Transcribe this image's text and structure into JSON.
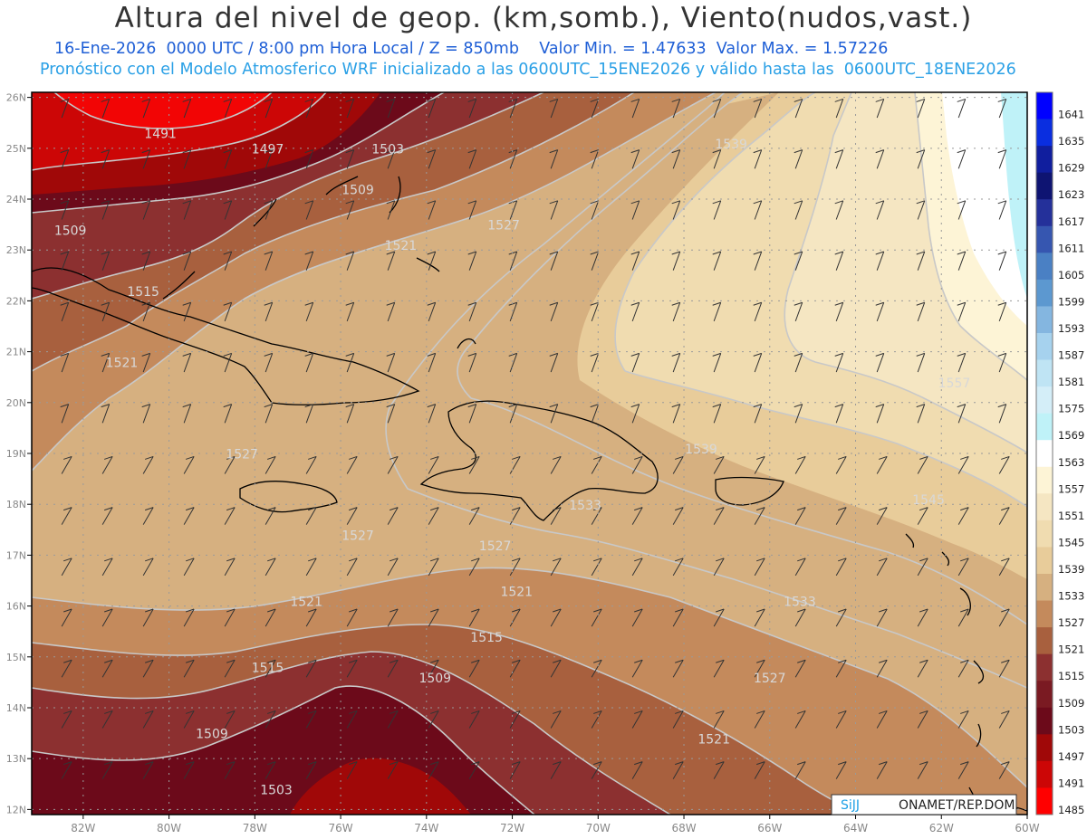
{
  "header": {
    "title": "Altura del nivel de geop. (km,somb.), Viento(nudos,vast.)",
    "date": "16-Ene-2026",
    "time": "0000 UTC / 8:00 pm Hora Local / Z = 850mb",
    "vmin": "Valor Min. = 1.47633",
    "vmax": "Valor Max. = 1.57226",
    "model_line": "Pronóstico con el Modelo Atmosferico WRF inicializado a las 0600UTC_15ENE2026 y válido hasta las  0600UTC_18ENE2026"
  },
  "axes": {
    "lon_labels": [
      "82W",
      "80W",
      "78W",
      "76W",
      "74W",
      "72W",
      "70W",
      "68W",
      "66W",
      "64W",
      "62W",
      "60W"
    ],
    "lon_values": [
      -82,
      -80,
      -78,
      -76,
      -74,
      -72,
      -70,
      -68,
      -66,
      -64,
      -62,
      -60
    ],
    "lat_labels": [
      "26N",
      "25N",
      "24N",
      "23N",
      "22N",
      "21N",
      "20N",
      "19N",
      "18N",
      "17N",
      "16N",
      "15N",
      "14N",
      "13N",
      "12N"
    ],
    "lat_values": [
      26,
      25,
      24,
      23,
      22,
      21,
      20,
      19,
      18,
      17,
      16,
      15,
      14,
      13,
      12
    ],
    "lon_range": [
      -83.2,
      -60
    ],
    "lat_range": [
      11.9,
      26.1
    ]
  },
  "colorbar": {
    "labels": [
      "1641",
      "1635",
      "1629",
      "1623",
      "1617",
      "1611",
      "1605",
      "1599",
      "1593",
      "1587",
      "1581",
      "1575",
      "1569",
      "1563",
      "1557",
      "1551",
      "1545",
      "1539",
      "1533",
      "1527",
      "1521",
      "1515",
      "1509",
      "1503",
      "1497",
      "1491",
      "1485"
    ],
    "colors": [
      "#0000ff",
      "#0a2ee0",
      "#101e9e",
      "#0e1472",
      "#24309a",
      "#3656b0",
      "#4a80c4",
      "#5c98d0",
      "#84b6e0",
      "#a6d2ee",
      "#bfe4f4",
      "#d4eef8",
      "#bff2f8",
      "#ffffff",
      "#fdf4d6",
      "#f5e6c2",
      "#f0dcb0",
      "#e8cc9a",
      "#d6b080",
      "#c48a5c",
      "#a8603e",
      "#8c3030",
      "#7a1a22",
      "#6c0a1a",
      "#a00808",
      "#cc0606",
      "#ff0000"
    ]
  },
  "contour_labels": [
    {
      "text": "1491",
      "lon": -80.2,
      "lat": 25.2
    },
    {
      "text": "1497",
      "lon": -77.7,
      "lat": 24.9
    },
    {
      "text": "1503",
      "lon": -74.9,
      "lat": 24.9
    },
    {
      "text": "1509",
      "lon": -75.6,
      "lat": 24.1
    },
    {
      "text": "1509",
      "lon": -82.3,
      "lat": 23.3
    },
    {
      "text": "1521",
      "lon": -74.6,
      "lat": 23.0
    },
    {
      "text": "1527",
      "lon": -72.2,
      "lat": 23.4
    },
    {
      "text": "1539",
      "lon": -66.9,
      "lat": 25.0
    },
    {
      "text": "1515",
      "lon": -80.6,
      "lat": 22.1
    },
    {
      "text": "1521",
      "lon": -81.1,
      "lat": 20.7
    },
    {
      "text": "1557",
      "lon": -61.7,
      "lat": 20.3
    },
    {
      "text": "1539",
      "lon": -67.6,
      "lat": 19.0
    },
    {
      "text": "1545",
      "lon": -62.3,
      "lat": 18.0
    },
    {
      "text": "1527",
      "lon": -78.3,
      "lat": 18.9
    },
    {
      "text": "1533",
      "lon": -70.3,
      "lat": 17.9
    },
    {
      "text": "1527",
      "lon": -75.6,
      "lat": 17.3
    },
    {
      "text": "1527",
      "lon": -72.4,
      "lat": 17.1
    },
    {
      "text": "1521",
      "lon": -71.9,
      "lat": 16.2
    },
    {
      "text": "1521",
      "lon": -76.8,
      "lat": 16.0
    },
    {
      "text": "1533",
      "lon": -65.3,
      "lat": 16.0
    },
    {
      "text": "1515",
      "lon": -72.6,
      "lat": 15.3
    },
    {
      "text": "1515",
      "lon": -77.7,
      "lat": 14.7
    },
    {
      "text": "1509",
      "lon": -73.8,
      "lat": 14.5
    },
    {
      "text": "1527",
      "lon": -66.0,
      "lat": 14.5
    },
    {
      "text": "1509",
      "lon": -79.0,
      "lat": 13.4
    },
    {
      "text": "1521",
      "lon": -67.3,
      "lat": 13.3
    },
    {
      "text": "1503",
      "lon": -77.5,
      "lat": 12.3
    }
  ],
  "colors": {
    "title": "#333333",
    "line1": "#1f5fd6",
    "line2": "#2aa0e6",
    "coast": "#000000",
    "contour": "#c8c8c8",
    "grid": "#9a9a9a",
    "axis_text": "#888888"
  },
  "credit": {
    "logo_text": "SiJJ",
    "org": "ONAMET/REP.DOM."
  }
}
